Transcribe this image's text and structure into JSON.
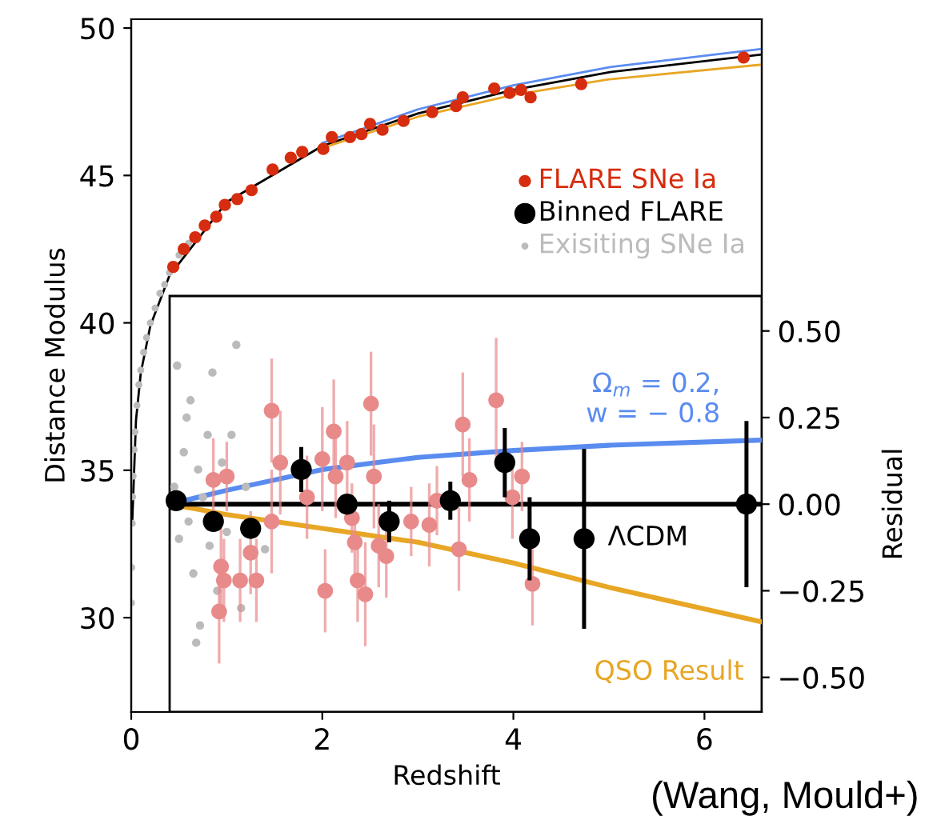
{
  "chart_data": {
    "type": "scatter",
    "xlabel": "Redshift",
    "ylabel": "Distance Modulus",
    "y2label": "Residual",
    "xlim": [
      0,
      6.6
    ],
    "xticks": [
      0,
      2,
      4,
      6
    ],
    "ylim": [
      26.8,
      50.3
    ],
    "yticks": [
      30,
      35,
      40,
      45,
      50
    ],
    "y2lim": [
      -0.6,
      1.4
    ],
    "y2ticks": [
      {
        "value": -0.5,
        "label": "−0.50"
      },
      {
        "value": -0.25,
        "label": "−0.25"
      },
      {
        "value": 0,
        "label": "0.00"
      },
      {
        "value": 0.25,
        "label": "0.25"
      },
      {
        "value": 0.5,
        "label": "0.50"
      }
    ],
    "legend": "right",
    "grid": false,
    "annotations": [
      "(Wang, Mould+)"
    ],
    "series": [
      {
        "type": "line",
        "color": "#000000",
        "x": [
          0.01,
          0.05,
          0.1,
          0.2,
          0.4,
          1,
          2,
          3,
          4,
          5,
          6.6
        ],
        "values": [
          33.2,
          36.7,
          38.3,
          39.9,
          41.6,
          44.1,
          46.0,
          47.1,
          47.9,
          48.5,
          49.1
        ]
      },
      {
        "type": "line",
        "color": "#e8a625",
        "x": [
          2,
          3,
          4,
          5,
          6.6
        ],
        "values": [
          45.93,
          46.99,
          47.73,
          48.26,
          48.76
        ]
      },
      {
        "type": "line",
        "color": "#5a8cf0",
        "x": [
          2,
          3,
          4,
          5,
          6.6
        ],
        "values": [
          46.1,
          47.24,
          48.06,
          48.67,
          49.29
        ]
      },
      {
        "name": "Exisiting SNe Ia",
        "color": "#bbbbbb",
        "marker": "circle",
        "x": [
          0.003,
          0.005,
          0.01,
          0.015,
          0.02,
          0.03,
          0.04,
          0.06,
          0.08,
          0.1,
          0.13,
          0.16,
          0.2,
          0.25,
          0.3,
          0.35,
          0.4,
          0.5,
          0.6
        ],
        "values": [
          30.5,
          31.7,
          33.2,
          34.1,
          34.8,
          35.7,
          36.3,
          37.2,
          37.9,
          38.4,
          39.0,
          39.5,
          40.0,
          40.5,
          41.0,
          41.3,
          41.7,
          42.3,
          42.7
        ]
      },
      {
        "name": "FLARE SNe Ia",
        "color": "#d62c0f",
        "marker": "circle",
        "x": [
          0.44,
          0.55,
          0.67,
          0.77,
          0.89,
          0.98,
          1.11,
          1.26,
          1.48,
          1.67,
          1.79,
          2.01,
          2.1,
          2.29,
          2.41,
          2.5,
          2.63,
          2.85,
          3.15,
          3.4,
          3.47,
          3.8,
          3.96,
          4.08,
          4.18,
          4.71,
          6.41
        ],
        "values": [
          41.9,
          42.5,
          42.9,
          43.3,
          43.6,
          44.0,
          44.2,
          44.5,
          45.2,
          45.6,
          45.8,
          45.9,
          46.3,
          46.3,
          46.4,
          46.75,
          46.55,
          46.85,
          47.15,
          47.35,
          47.65,
          47.95,
          47.8,
          47.9,
          47.65,
          48.1,
          49.0
        ]
      },
      {
        "axis": "y2",
        "color": "#bbbbbb",
        "marker": "circle",
        "x": [
          0.45,
          0.5,
          0.55,
          0.6,
          0.62,
          0.65,
          0.7,
          0.72,
          0.75,
          0.8,
          0.82,
          0.85,
          0.9,
          0.95,
          1.0,
          1.05,
          1.1,
          1.15,
          0.48,
          0.58,
          1.2,
          0.68,
          1.4
        ],
        "values": [
          0.05,
          -0.1,
          0.15,
          -0.05,
          0.3,
          -0.2,
          0.1,
          -0.35,
          0.02,
          0.2,
          -0.12,
          0.38,
          -0.25,
          0.12,
          -0.08,
          0.2,
          0.46,
          -0.3,
          0.4,
          0.25,
          0.05,
          -0.4,
          -0.13
        ]
      },
      {
        "axis": "y2",
        "color": "#e8898a",
        "marker": "circle",
        "x": [
          0.86,
          0.92,
          0.94,
          0.97,
          1.0,
          1.14,
          1.25,
          1.31,
          1.47,
          1.47,
          1.56,
          1.84,
          2.0,
          2.03,
          2.12,
          2.14,
          2.26,
          2.31,
          2.34,
          2.37,
          2.45,
          2.51,
          2.54,
          2.59,
          2.67,
          2.93,
          3.12,
          3.2,
          3.43,
          3.47,
          3.54,
          3.82,
          3.99,
          4.09,
          4.2
        ],
        "values": [
          0.07,
          -0.31,
          -0.18,
          -0.22,
          0.08,
          -0.22,
          -0.14,
          -0.22,
          0.27,
          -0.05,
          0.12,
          0.02,
          0.13,
          -0.25,
          0.21,
          0.08,
          0.12,
          -0.04,
          -0.11,
          -0.22,
          -0.26,
          0.29,
          0.08,
          -0.12,
          -0.15,
          -0.05,
          -0.06,
          0.01,
          -0.13,
          0.23,
          0.07,
          0.3,
          0.02,
          0.08,
          -0.23
        ],
        "errors": [
          0.12,
          0.15,
          0.12,
          0.12,
          0.1,
          0.12,
          0.12,
          0.12,
          0.15,
          0.15,
          0.15,
          0.12,
          0.15,
          0.12,
          0.15,
          0.12,
          0.12,
          0.1,
          0.12,
          0.12,
          0.15,
          0.15,
          0.15,
          0.12,
          0.12,
          0.1,
          0.12,
          0.1,
          0.12,
          0.15,
          0.12,
          0.18,
          0.12,
          0.1,
          0.12
        ]
      },
      {
        "type": "line",
        "axis": "y2",
        "name": "QSO Result",
        "color": "#e8a625",
        "x": [
          0.4,
          1,
          2,
          3,
          4,
          5,
          6.6
        ],
        "values": [
          0,
          -0.03,
          -0.07,
          -0.11,
          -0.17,
          -0.24,
          -0.34
        ]
      },
      {
        "type": "line",
        "axis": "y2",
        "name": "ΛCDM",
        "color": "#000000",
        "x": [
          0.4,
          6.6
        ],
        "values": [
          0,
          0
        ]
      },
      {
        "type": "line",
        "axis": "y2",
        "name": "Ω$_{m}$ = 0.2,\nw = − 0.8",
        "color": "#5a8cf0",
        "x": [
          0.4,
          1,
          2,
          3,
          4,
          5,
          6.6
        ],
        "values": [
          0,
          0.04,
          0.1,
          0.135,
          0.155,
          0.17,
          0.185
        ]
      },
      {
        "axis": "y2",
        "name": "Binned FLARE",
        "color": "#000000",
        "marker": "circle",
        "x": [
          0.47,
          0.86,
          1.25,
          1.78,
          2.26,
          2.7,
          3.34,
          3.91,
          4.17,
          4.74,
          6.44
        ],
        "values": [
          0.01,
          -0.05,
          -0.07,
          0.1,
          0.0,
          -0.05,
          0.01,
          0.12,
          -0.1,
          -0.1,
          0.0
        ],
        "errors": [
          null,
          null,
          null,
          0.065,
          null,
          0.06,
          0.055,
          0.1,
          0.12,
          0.26,
          0.24
        ]
      }
    ]
  }
}
